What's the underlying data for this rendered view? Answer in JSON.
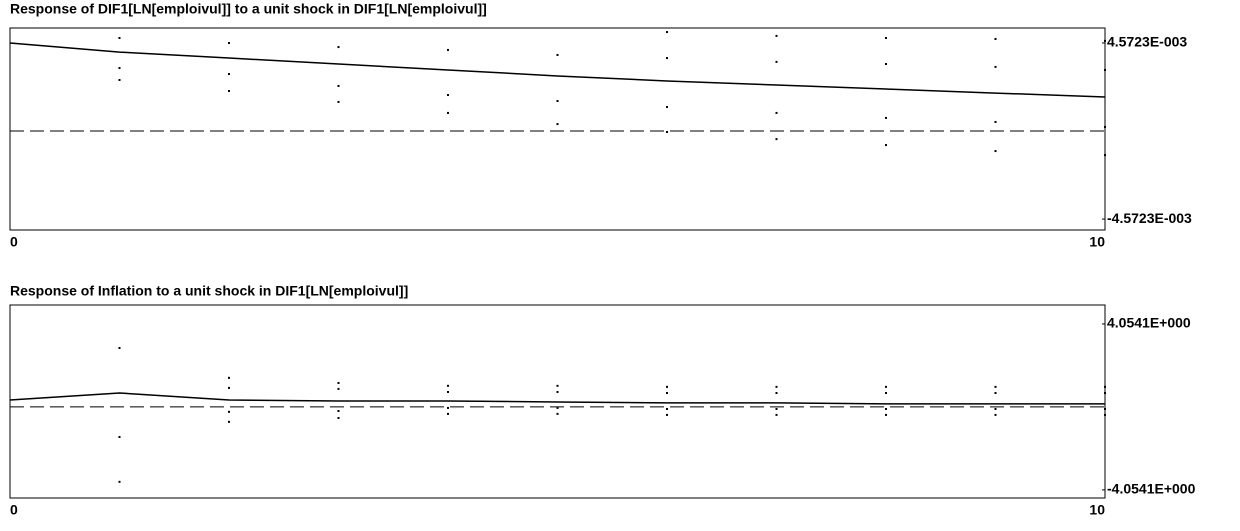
{
  "chart_data": [
    {
      "type": "line",
      "title": "Response of DIF1[LN[emploivul]] to a unit shock in DIF1[LN[emploivul]]",
      "x": [
        0,
        1,
        2,
        3,
        4,
        5,
        6,
        7,
        8,
        9,
        10
      ],
      "xlim": [
        0,
        10
      ],
      "xticks": [
        0,
        10
      ],
      "ylim": [
        -0.00514,
        0.00535
      ],
      "yticks": [
        {
          "value": 0.0045723,
          "label": "4.5723E-003"
        },
        {
          "value": -0.0045723,
          "label": "-4.5723E-003"
        }
      ],
      "series": [
        {
          "color": "#000000",
          "style": "solid",
          "values": [
            0.00457,
            0.0041,
            0.00379,
            0.00348,
            0.00317,
            0.00286,
            0.0026,
            0.00239,
            0.00218,
            0.00197,
            0.00177
          ]
        },
        {
          "color": "#000000",
          "style": "dotted",
          "values": [
            null,
            null,
            null,
            null,
            null,
            null,
            0.00514,
            0.00494,
            0.00483,
            0.00478,
            0.00468
          ]
        },
        {
          "color": "#000000",
          "style": "dotted",
          "values": [
            null,
            0.00483,
            0.00457,
            0.00436,
            0.00421,
            0.00395,
            0.00379,
            0.00359,
            0.00348,
            0.00333,
            0.00317
          ]
        },
        {
          "color": "#000000",
          "style": "dotted",
          "values": [
            null,
            0.00327,
            0.00296,
            0.00234,
            0.00187,
            0.00156,
            0.00125,
            0.00094,
            0.00068,
            0.00047,
            0.00021
          ]
        },
        {
          "color": "#000000",
          "style": "dotted",
          "values": [
            null,
            0.00265,
            0.00208,
            0.00151,
            0.00094,
            0.00036,
            -5e-05,
            -0.00042,
            -0.00073,
            -0.00104,
            -0.00125
          ]
        }
      ]
    },
    {
      "type": "line",
      "title": "Response of Inflation to a unit shock in DIF1[LN[emploivul]]",
      "x": [
        0,
        1,
        2,
        3,
        4,
        5,
        6,
        7,
        8,
        9,
        10
      ],
      "xlim": [
        0,
        10
      ],
      "xticks": [
        0,
        10
      ],
      "ylim": [
        -4.45,
        4.98
      ],
      "yticks": [
        {
          "value": 4.0541,
          "label": "4.0541E+000"
        },
        {
          "value": -4.0541,
          "label": "-4.0541E+000"
        }
      ],
      "series": [
        {
          "color": "#000000",
          "style": "solid",
          "values": [
            0.34,
            0.68,
            0.34,
            0.29,
            0.29,
            0.24,
            0.2,
            0.2,
            0.15,
            0.15,
            0.15
          ]
        },
        {
          "color": "#000000",
          "style": "dotted",
          "values": [
            null,
            null,
            1.42,
            1.17,
            1.03,
            1.03,
            0.98,
            0.98,
            0.98,
            0.98,
            0.98
          ]
        },
        {
          "color": "#000000",
          "style": "dotted",
          "values": [
            null,
            2.88,
            0.93,
            0.88,
            0.73,
            0.73,
            0.68,
            0.68,
            0.68,
            0.68,
            0.68
          ]
        },
        {
          "color": "#000000",
          "style": "dotted",
          "values": [
            null,
            -1.47,
            -0.24,
            -0.2,
            -0.05,
            -0.05,
            -0.1,
            -0.1,
            -0.1,
            -0.1,
            -0.1
          ]
        },
        {
          "color": "#000000",
          "style": "dotted",
          "values": [
            null,
            -3.66,
            -0.73,
            -0.54,
            -0.34,
            -0.34,
            -0.39,
            -0.39,
            -0.39,
            -0.39,
            -0.39
          ]
        }
      ]
    }
  ]
}
